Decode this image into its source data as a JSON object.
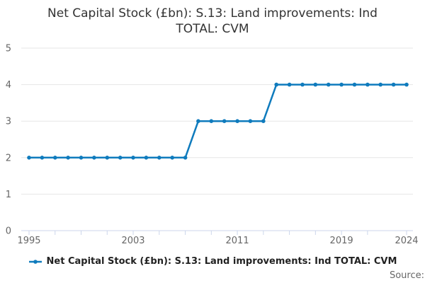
{
  "title": {
    "text": "Net Capital Stock (£bn): S.13: Land improvements: Ind TOTAL: CVM",
    "line1": "Net Capital Stock (£bn): S.13: Land improvements: Ind",
    "line2": "TOTAL: CVM"
  },
  "legend": {
    "items": [
      {
        "label": "Net Capital Stock (£bn): S.13: Land improvements: Ind TOTAL: CVM",
        "marker": "line-with-dot",
        "color": "#0f7bbd"
      }
    ]
  },
  "source": {
    "label": "Source:"
  },
  "colors": {
    "series": "#0f7bbd",
    "grid": "#e6e6e6",
    "axis": "#ccd6eb",
    "tick_label": "#666666",
    "title_text": "#333333",
    "legend_text": "#222222",
    "background": "#ffffff"
  },
  "chart_data": {
    "type": "line",
    "title": "Net Capital Stock (£bn): S.13: Land improvements: Ind TOTAL: CVM",
    "xlabel": "",
    "ylabel": "",
    "x": [
      1995,
      1996,
      1997,
      1998,
      1999,
      2000,
      2001,
      2002,
      2003,
      2004,
      2005,
      2006,
      2007,
      2008,
      2009,
      2010,
      2011,
      2012,
      2013,
      2014,
      2015,
      2016,
      2017,
      2018,
      2019,
      2020,
      2021,
      2022,
      2023,
      2024
    ],
    "series": [
      {
        "name": "Net Capital Stock (£bn): S.13: Land improvements: Ind TOTAL: CVM",
        "color": "#0f7bbd",
        "values": [
          2,
          2,
          2,
          2,
          2,
          2,
          2,
          2,
          2,
          2,
          2,
          2,
          2,
          3,
          3,
          3,
          3,
          3,
          3,
          4,
          4,
          4,
          4,
          4,
          4,
          4,
          4,
          4,
          4,
          4
        ]
      }
    ],
    "xlim": [
      1995,
      2024
    ],
    "ylim": [
      0,
      5
    ],
    "yticks": [
      0,
      1,
      2,
      3,
      4,
      5
    ],
    "xticks": [
      1995,
      1997,
      1999,
      2001,
      2003,
      2005,
      2007,
      2009,
      2011,
      2013,
      2015,
      2017,
      2019,
      2021,
      2024
    ],
    "xtick_labels": [
      1995,
      2003,
      2011,
      2019,
      2024
    ],
    "grid": true,
    "markers": true,
    "legend_position": "bottom"
  }
}
